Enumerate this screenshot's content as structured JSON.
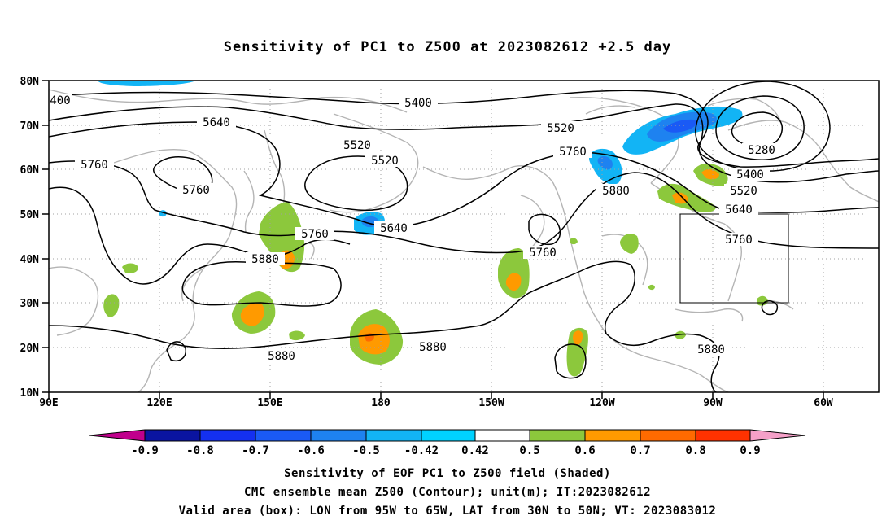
{
  "title": "Sensitivity of PC1 to Z500 at 2023082612 +2.5 day",
  "lat_ticks": [
    "80N",
    "70N",
    "60N",
    "50N",
    "40N",
    "30N",
    "20N",
    "10N"
  ],
  "lon_ticks": [
    "90E",
    "120E",
    "150E",
    "180",
    "150W",
    "120W",
    "90W",
    "60W"
  ],
  "contour_labels": [
    "5400",
    "5520",
    "5640",
    "5760",
    "5880",
    "5280"
  ],
  "colorbar": {
    "labels": [
      "-0.9",
      "-0.8",
      "-0.7",
      "-0.6",
      "-0.5",
      "-0.42",
      "0.42",
      "0.5",
      "0.6",
      "0.7",
      "0.8",
      "0.9"
    ],
    "colors": [
      "#c0008c",
      "#0a14a0",
      "#1430f0",
      "#1a5af5",
      "#1e82f0",
      "#12b4f5",
      "#00d2ff",
      "#ffffff",
      "#8cc83c",
      "#ff9a00",
      "#ff6a00",
      "#ff3200",
      "#ff0000",
      "#f5a0c8"
    ]
  },
  "valid_box": {
    "lon_from": "95W",
    "lon_to": "65W",
    "lat_from": "30N",
    "lat_to": "50N"
  },
  "captions": [
    "Sensitivity of EOF PC1 to Z500 field (Shaded)",
    "CMC ensemble mean Z500 (Contour); unit(m); IT:2023082612",
    "Valid area (box): LON from 95W to 65W, LAT from 30N to 50N; VT: 2023083012"
  ]
}
